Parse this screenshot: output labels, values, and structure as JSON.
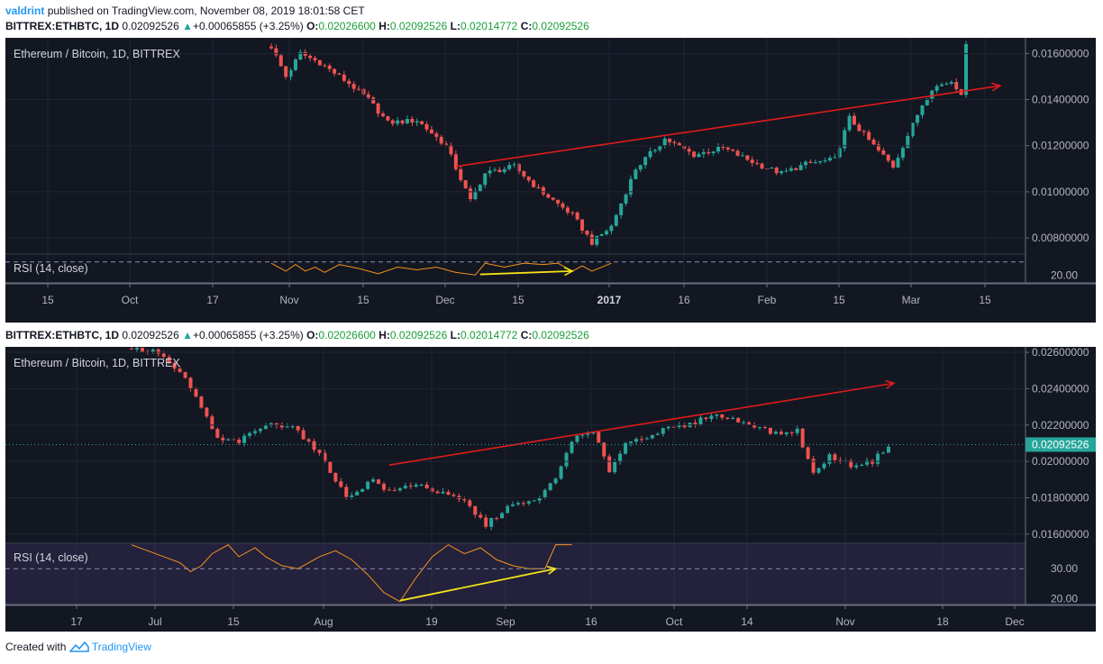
{
  "header": {
    "publisher": "valdrint",
    "published_text": "published on TradingView.com, November 08, 2019 18:01:58 CET"
  },
  "ticker": {
    "symbol": "BITTREX:ETHBTC, 1D",
    "last": "0.02092526",
    "change": "+0.00065855 (+3.25%)",
    "o_label": "O:",
    "o": "0.02026600",
    "h_label": "H:",
    "h": "0.02092526",
    "l_label": "L:",
    "l": "0.02014772",
    "c_label": "C:",
    "c": "0.02092526"
  },
  "colors": {
    "background": "#131722",
    "up": "#26a69a",
    "down": "#ef5350",
    "trend": "#e01b1b",
    "rsi_trend": "#f5e21b",
    "rsi": "#f7931a",
    "rsi_band": "#7e57c2"
  },
  "chart_data": [
    {
      "type": "candlestick",
      "title": "Ethereum / Bitcoin, 1D, BITTREX",
      "ylim": [
        0.0073,
        0.0166
      ],
      "y_ticks": [
        "0.01600000",
        "0.01400000",
        "0.01200000",
        "0.01000000",
        "0.00800000"
      ],
      "x_ticks": [
        "15",
        "Oct",
        "17",
        "Nov",
        "15",
        "Dec",
        "15",
        "2017",
        "16",
        "Feb",
        "15",
        "Mar",
        "15"
      ],
      "anchors": [
        {
          "i": 0,
          "v": 0.0163
        },
        {
          "i": 3,
          "v": 0.015
        },
        {
          "i": 6,
          "v": 0.016
        },
        {
          "i": 10,
          "v": 0.0156
        },
        {
          "i": 16,
          "v": 0.0147
        },
        {
          "i": 20,
          "v": 0.014
        },
        {
          "i": 24,
          "v": 0.013
        },
        {
          "i": 30,
          "v": 0.0131
        },
        {
          "i": 36,
          "v": 0.012
        },
        {
          "i": 41,
          "v": 0.0096
        },
        {
          "i": 44,
          "v": 0.0108
        },
        {
          "i": 50,
          "v": 0.0111
        },
        {
          "i": 55,
          "v": 0.0101
        },
        {
          "i": 62,
          "v": 0.009
        },
        {
          "i": 66,
          "v": 0.0078
        },
        {
          "i": 70,
          "v": 0.0085
        },
        {
          "i": 75,
          "v": 0.011
        },
        {
          "i": 81,
          "v": 0.0123
        },
        {
          "i": 87,
          "v": 0.0116
        },
        {
          "i": 93,
          "v": 0.0119
        },
        {
          "i": 100,
          "v": 0.0112
        },
        {
          "i": 105,
          "v": 0.0108
        },
        {
          "i": 110,
          "v": 0.0112
        },
        {
          "i": 116,
          "v": 0.0114
        },
        {
          "i": 119,
          "v": 0.0132
        },
        {
          "i": 124,
          "v": 0.012
        },
        {
          "i": 128,
          "v": 0.0111
        },
        {
          "i": 134,
          "v": 0.0138
        },
        {
          "i": 136,
          "v": 0.0145
        },
        {
          "i": 140,
          "v": 0.0148
        },
        {
          "i": 142,
          "v": 0.0143
        },
        {
          "i": 143,
          "v": 0.0163
        }
      ],
      "trendline": {
        "from": [
          38,
          0.0111
        ],
        "to": [
          150,
          0.0146
        ],
        "arrow": true
      },
      "rsi": {
        "label": "RSI (14, close)",
        "ylim": [
          14,
          36
        ],
        "y_ticks": [
          "20.00"
        ],
        "level": 30,
        "values": [
          [
            0,
            29
          ],
          [
            3,
            23
          ],
          [
            5,
            28
          ],
          [
            7,
            23
          ],
          [
            9,
            26
          ],
          [
            11,
            22
          ],
          [
            14,
            28
          ],
          [
            18,
            25
          ],
          [
            22,
            21
          ],
          [
            26,
            26
          ],
          [
            30,
            24
          ],
          [
            34,
            26
          ],
          [
            38,
            22
          ],
          [
            42,
            20
          ],
          [
            44,
            29
          ],
          [
            48,
            26
          ],
          [
            52,
            29
          ],
          [
            56,
            28
          ],
          [
            59,
            29
          ],
          [
            62,
            23
          ],
          [
            64,
            27
          ],
          [
            66,
            23
          ],
          [
            68,
            26
          ],
          [
            70,
            29
          ]
        ],
        "trendline": {
          "from": [
            43,
            20.5
          ],
          "to": [
            62,
            23
          ],
          "arrow": true
        }
      }
    },
    {
      "type": "candlestick",
      "title": "Ethereum / Bitcoin, 1D, BITTREX",
      "ylim": [
        0.0155,
        0.0262
      ],
      "y_ticks": [
        "0.02600000",
        "0.02400000",
        "0.02200000",
        "0.02000000",
        "0.01800000",
        "0.01600000"
      ],
      "current_price": "0.02092526",
      "x_ticks": [
        "17",
        "Jul",
        "15",
        "Aug",
        "19",
        "Sep",
        "16",
        "Oct",
        "14",
        "Nov",
        "18",
        "Dec"
      ],
      "anchors": [
        {
          "i": 0,
          "v": 0.0262
        },
        {
          "i": 5,
          "v": 0.026
        },
        {
          "i": 10,
          "v": 0.0245
        },
        {
          "i": 13,
          "v": 0.023
        },
        {
          "i": 16,
          "v": 0.0212
        },
        {
          "i": 20,
          "v": 0.0211
        },
        {
          "i": 25,
          "v": 0.022
        },
        {
          "i": 30,
          "v": 0.022
        },
        {
          "i": 36,
          "v": 0.02
        },
        {
          "i": 40,
          "v": 0.018
        },
        {
          "i": 45,
          "v": 0.019
        },
        {
          "i": 48,
          "v": 0.0183
        },
        {
          "i": 53,
          "v": 0.0188
        },
        {
          "i": 57,
          "v": 0.0183
        },
        {
          "i": 62,
          "v": 0.0178
        },
        {
          "i": 66,
          "v": 0.0165
        },
        {
          "i": 70,
          "v": 0.0175
        },
        {
          "i": 75,
          "v": 0.0178
        },
        {
          "i": 79,
          "v": 0.019
        },
        {
          "i": 82,
          "v": 0.0212
        },
        {
          "i": 86,
          "v": 0.0216
        },
        {
          "i": 89,
          "v": 0.0195
        },
        {
          "i": 92,
          "v": 0.021
        },
        {
          "i": 96,
          "v": 0.0214
        },
        {
          "i": 100,
          "v": 0.0218
        },
        {
          "i": 104,
          "v": 0.022
        },
        {
          "i": 108,
          "v": 0.0226
        },
        {
          "i": 112,
          "v": 0.0223
        },
        {
          "i": 116,
          "v": 0.022
        },
        {
          "i": 120,
          "v": 0.0215
        },
        {
          "i": 124,
          "v": 0.0217
        },
        {
          "i": 127,
          "v": 0.0193
        },
        {
          "i": 130,
          "v": 0.0203
        },
        {
          "i": 134,
          "v": 0.0198
        },
        {
          "i": 138,
          "v": 0.02
        },
        {
          "i": 141,
          "v": 0.0209
        }
      ],
      "trendline": {
        "from": [
          48,
          0.0198
        ],
        "to": [
          142,
          0.0243
        ],
        "arrow": true
      },
      "rsi": {
        "label": "RSI (14, close)",
        "ylim": [
          18,
          38.5
        ],
        "y_ticks": [
          "30.00",
          "20.00"
        ],
        "level": 30,
        "values": [
          [
            0,
            38
          ],
          [
            3,
            36
          ],
          [
            6,
            34
          ],
          [
            9,
            32
          ],
          [
            11,
            29
          ],
          [
            13,
            31
          ],
          [
            15,
            35
          ],
          [
            18,
            38
          ],
          [
            20,
            34
          ],
          [
            23,
            37
          ],
          [
            25,
            34
          ],
          [
            28,
            31
          ],
          [
            31,
            30
          ],
          [
            33,
            32
          ],
          [
            35,
            34
          ],
          [
            38,
            36
          ],
          [
            41,
            33
          ],
          [
            44,
            28
          ],
          [
            47,
            22
          ],
          [
            50,
            19
          ],
          [
            53,
            27
          ],
          [
            56,
            34
          ],
          [
            59,
            38
          ],
          [
            62,
            35
          ],
          [
            65,
            37
          ],
          [
            68,
            33
          ],
          [
            71,
            31
          ],
          [
            74,
            30
          ],
          [
            77,
            30
          ],
          [
            79,
            38
          ],
          [
            82,
            38
          ]
        ],
        "trendline": {
          "from": [
            50,
            19.3
          ],
          "to": [
            79,
            30
          ],
          "arrow": true
        }
      }
    }
  ],
  "footer": {
    "created_with": "Created with",
    "brand": "TradingView"
  }
}
